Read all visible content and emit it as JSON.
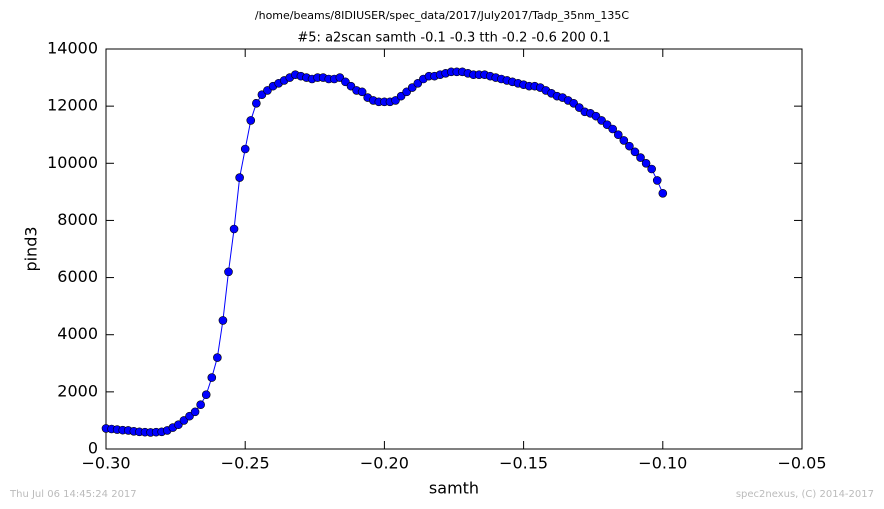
{
  "chart_data": {
    "type": "line",
    "suptitle": "/home/beams/8IDIUSER/spec_data/2017/July2017/Tadp_35nm_135C",
    "title": "#5: a2scan  samth -0.1 -0.3  tth -0.2 -0.6  200 0.1",
    "xlabel": "samth",
    "ylabel": "pind3",
    "footer_left": "Thu Jul 06 14:45:24 2017",
    "footer_right": "spec2nexus, (C) 2014-2017",
    "xlim": [
      -0.3,
      -0.05
    ],
    "xticks": [
      {
        "value": -0.3,
        "label": "−0.30"
      },
      {
        "value": -0.25,
        "label": "−0.25"
      },
      {
        "value": -0.2,
        "label": "−0.20"
      },
      {
        "value": -0.15,
        "label": "−0.15"
      },
      {
        "value": -0.1,
        "label": "−0.10"
      },
      {
        "value": -0.05,
        "label": "−0.05"
      }
    ],
    "ylim": [
      0,
      14000
    ],
    "yticks": [
      0,
      2000,
      4000,
      6000,
      8000,
      10000,
      12000,
      14000
    ],
    "grid": false,
    "series": [
      {
        "color": "#0000ff",
        "x": [
          -0.3,
          -0.298,
          -0.296,
          -0.294,
          -0.292,
          -0.29,
          -0.288,
          -0.286,
          -0.284,
          -0.282,
          -0.28,
          -0.278,
          -0.276,
          -0.274,
          -0.272,
          -0.27,
          -0.268,
          -0.266,
          -0.264,
          -0.262,
          -0.26,
          -0.258,
          -0.256,
          -0.254,
          -0.252,
          -0.25,
          -0.248,
          -0.246,
          -0.244,
          -0.242,
          -0.24,
          -0.238,
          -0.236,
          -0.234,
          -0.232,
          -0.23,
          -0.228,
          -0.226,
          -0.224,
          -0.222,
          -0.22,
          -0.218,
          -0.216,
          -0.214,
          -0.212,
          -0.21,
          -0.208,
          -0.206,
          -0.204,
          -0.202,
          -0.2,
          -0.198,
          -0.196,
          -0.194,
          -0.192,
          -0.19,
          -0.188,
          -0.186,
          -0.184,
          -0.182,
          -0.18,
          -0.178,
          -0.176,
          -0.174,
          -0.172,
          -0.17,
          -0.168,
          -0.166,
          -0.164,
          -0.162,
          -0.16,
          -0.158,
          -0.156,
          -0.154,
          -0.152,
          -0.15,
          -0.148,
          -0.146,
          -0.144,
          -0.142,
          -0.14,
          -0.138,
          -0.136,
          -0.134,
          -0.132,
          -0.13,
          -0.128,
          -0.126,
          -0.124,
          -0.122,
          -0.12,
          -0.118,
          -0.116,
          -0.114,
          -0.112,
          -0.11,
          -0.108,
          -0.106,
          -0.104,
          -0.102,
          -0.1
        ],
        "values": [
          720,
          700,
          680,
          660,
          650,
          620,
          600,
          590,
          580,
          590,
          600,
          650,
          750,
          850,
          1000,
          1150,
          1300,
          1550,
          1900,
          2500,
          3200,
          4500,
          6200,
          7700,
          9500,
          10500,
          11500,
          12100,
          12400,
          12550,
          12700,
          12800,
          12900,
          13000,
          13100,
          13050,
          13000,
          12950,
          13000,
          13000,
          12950,
          12950,
          13000,
          12850,
          12700,
          12550,
          12500,
          12300,
          12200,
          12150,
          12150,
          12150,
          12200,
          12350,
          12500,
          12650,
          12800,
          12950,
          13050,
          13050,
          13100,
          13150,
          13200,
          13200,
          13200,
          13150,
          13100,
          13100,
          13100,
          13050,
          13000,
          12950,
          12900,
          12850,
          12800,
          12750,
          12700,
          12700,
          12650,
          12550,
          12450,
          12350,
          12300,
          12200,
          12100,
          11950,
          11800,
          11750,
          11650,
          11500,
          11350,
          11200,
          11000,
          10800,
          10600,
          10400,
          10200,
          10000,
          9800,
          9400,
          8950
        ]
      }
    ]
  }
}
